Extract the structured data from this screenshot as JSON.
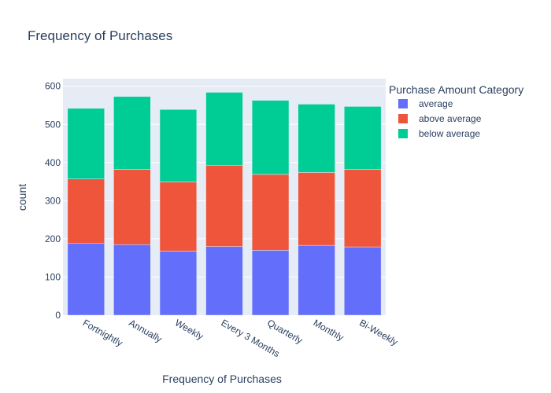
{
  "chart_data": {
    "type": "bar",
    "stacked": true,
    "title": "Frequency of Purchases",
    "xlabel": "Frequency of Purchases",
    "ylabel": "count",
    "ylim": [
      0,
      620
    ],
    "yticks": [
      0,
      100,
      200,
      300,
      400,
      500,
      600
    ],
    "categories": [
      "Fortnightly",
      "Annually",
      "Weekly",
      "Every 3 Months",
      "Quarterly",
      "Monthly",
      "Bi-Weekly"
    ],
    "legend_title": "Purchase Amount Category",
    "legend_position": "right",
    "grid": true,
    "series": [
      {
        "name": "average",
        "color": "#636efa",
        "values": [
          189,
          185,
          168,
          180,
          170,
          183,
          179
        ]
      },
      {
        "name": "above average",
        "color": "#ef553b",
        "values": [
          168,
          197,
          181,
          213,
          199,
          191,
          203
        ]
      },
      {
        "name": "below average",
        "color": "#00cc96",
        "values": [
          185,
          191,
          190,
          191,
          194,
          179,
          165
        ]
      }
    ],
    "plot_bg": "#e5ecf6"
  }
}
